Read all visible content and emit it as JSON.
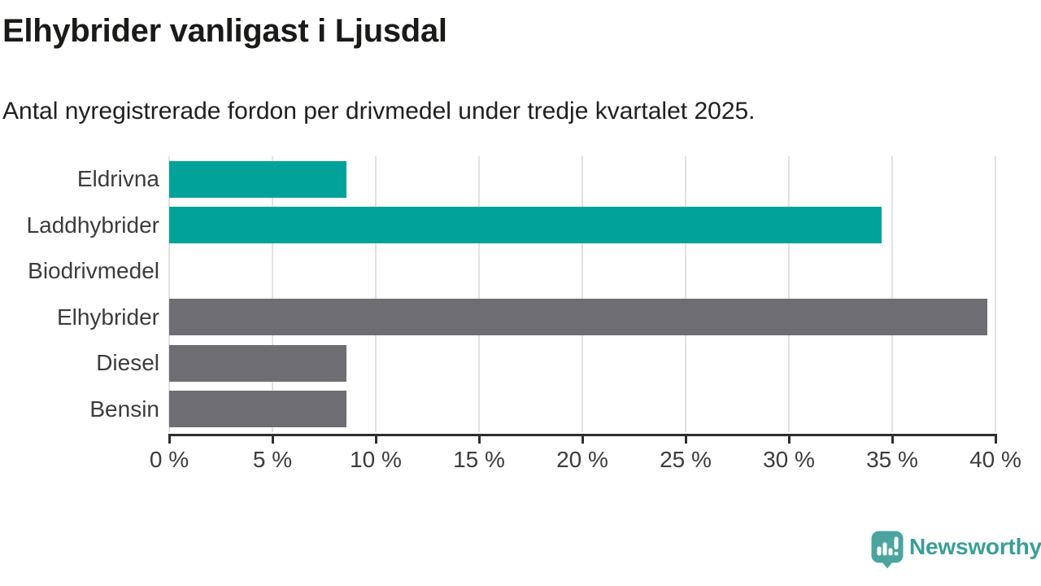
{
  "header": {
    "title": "Elhybrider vanligast i Ljusdal",
    "subtitle": "Antal nyregistrerade fordon per drivmedel under tredje kvartalet 2025."
  },
  "chart_data": {
    "type": "bar",
    "orientation": "horizontal",
    "title": "Elhybrider vanligast i Ljusdal",
    "subtitle": "Antal nyregistrerade fordon per drivmedel under tredje kvartalet 2025.",
    "categories": [
      "Eldrivna",
      "Laddhybrider",
      "Biodrivmedel",
      "Elhybrider",
      "Diesel",
      "Bensin"
    ],
    "values": [
      8.6,
      34.5,
      0,
      39.6,
      8.6,
      8.6
    ],
    "unit": "%",
    "bar_color_keys": [
      "teal",
      "teal",
      "teal",
      "gray",
      "gray",
      "gray"
    ],
    "xlabel": "",
    "ylabel": "",
    "xlim": [
      0,
      40
    ],
    "x_ticks": [
      0,
      5,
      10,
      15,
      20,
      25,
      30,
      35,
      40
    ],
    "x_tick_labels": [
      "0 %",
      "5 %",
      "10 %",
      "15 %",
      "20 %",
      "25 %",
      "30 %",
      "35 %",
      "40 %"
    ],
    "grid": "vertical-only",
    "legend": "none"
  },
  "colors": {
    "teal": "#00a29a",
    "gray": "#6e6d73",
    "gridline": "#e1e1e1",
    "axis": "#2e2e2e",
    "label_text": "#3c3c3c",
    "title_text": "#1a1a18",
    "logo_icon": "#4ba49f",
    "logo_text": "#3a9e99"
  },
  "footer": {
    "brand": "Newsworthy"
  }
}
